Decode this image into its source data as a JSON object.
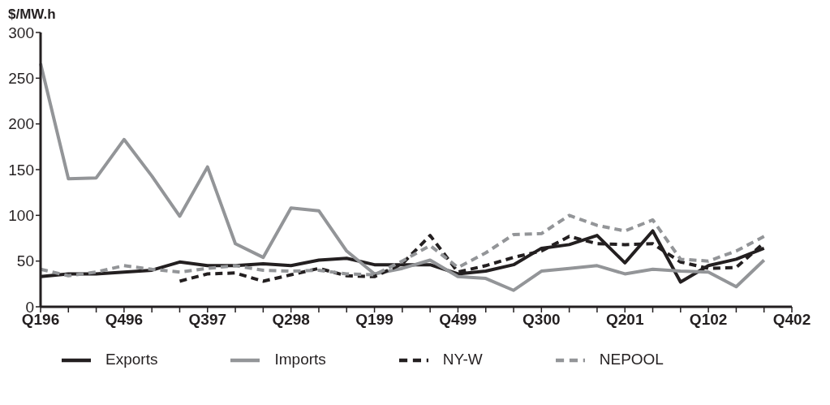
{
  "chart_data": {
    "type": "line",
    "ylabel": "$/MW.h",
    "categories": [
      "Q196",
      null,
      null,
      "Q496",
      null,
      null,
      "Q397",
      null,
      null,
      "Q298",
      null,
      null,
      "Q199",
      null,
      null,
      "Q499",
      null,
      null,
      "Q300",
      null,
      null,
      "Q201",
      null,
      null,
      "Q102",
      null,
      null,
      "Q402"
    ],
    "series": [
      {
        "name": "Exports",
        "color": "#231f20",
        "line_style": "solid",
        "values": [
          33,
          36,
          36,
          38,
          40,
          49,
          45,
          45,
          47,
          45,
          51,
          53,
          46,
          46,
          46,
          36,
          39,
          46,
          64,
          68,
          78,
          48,
          83,
          27,
          45,
          52,
          64,
          null
        ]
      },
      {
        "name": "Imports",
        "color": "#939598",
        "line_style": "solid",
        "values": [
          266,
          140,
          141,
          183,
          143,
          99,
          153,
          69,
          54,
          108,
          105,
          61,
          36,
          42,
          51,
          33,
          31,
          18,
          39,
          42,
          45,
          36,
          41,
          39,
          38,
          22,
          51,
          null
        ]
      },
      {
        "name": "NY-W",
        "color": "#231f20",
        "line_style": "dashed",
        "values": [
          null,
          null,
          null,
          null,
          null,
          28,
          36,
          37,
          28,
          35,
          42,
          34,
          33,
          47,
          78,
          38,
          45,
          54,
          61,
          77,
          69,
          68,
          69,
          49,
          42,
          43,
          70,
          null
        ]
      },
      {
        "name": "NEPOOL",
        "color": "#939598",
        "line_style": "dashed",
        "values": [
          41,
          34,
          38,
          45,
          41,
          38,
          42,
          45,
          40,
          39,
          40,
          36,
          35,
          50,
          67,
          43,
          59,
          79,
          80,
          100,
          89,
          83,
          95,
          52,
          50,
          61,
          77,
          null
        ]
      }
    ],
    "ylim": [
      0,
      300
    ],
    "yticks": [
      0,
      50,
      100,
      150,
      200,
      250,
      300
    ],
    "legend": "bottom",
    "marker": "none"
  }
}
